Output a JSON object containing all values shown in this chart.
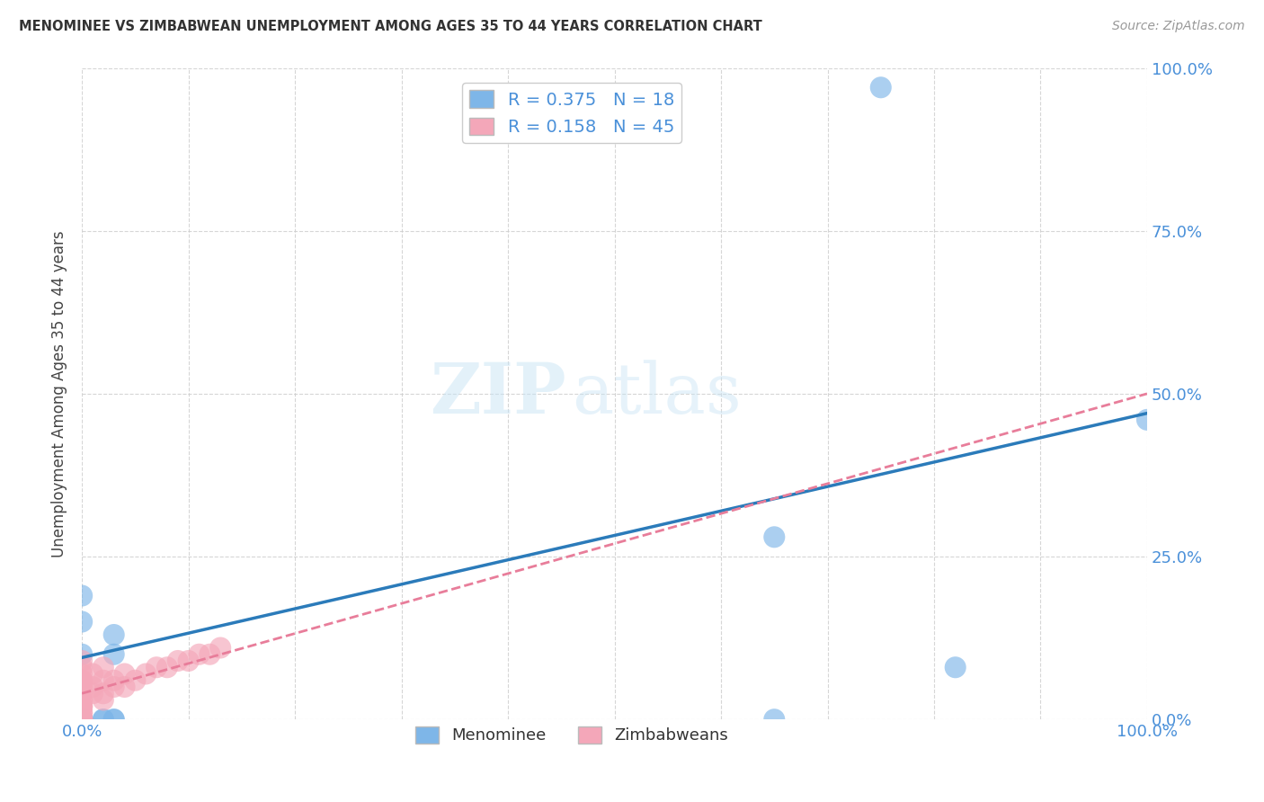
{
  "title": "MENOMINEE VS ZIMBABWEAN UNEMPLOYMENT AMONG AGES 35 TO 44 YEARS CORRELATION CHART",
  "source": "Source: ZipAtlas.com",
  "ylabel": "Unemployment Among Ages 35 to 44 years",
  "xlim": [
    0,
    1.0
  ],
  "ylim": [
    0,
    1.0
  ],
  "xticks": [
    0.0,
    0.1,
    0.2,
    0.3,
    0.4,
    0.5,
    0.6,
    0.7,
    0.8,
    0.9,
    1.0
  ],
  "yticks": [
    0.0,
    0.25,
    0.5,
    0.75,
    1.0
  ],
  "xticklabels_show": [
    "0.0%",
    "",
    "",
    "",
    "",
    "",
    "",
    "",
    "",
    "",
    "100.0%"
  ],
  "right_yticklabels": [
    "0.0%",
    "25.0%",
    "50.0%",
    "75.0%",
    "100.0%"
  ],
  "menominee_color": "#7EB6E8",
  "zimbabwean_color": "#F4A7B9",
  "menominee_R": 0.375,
  "menominee_N": 18,
  "zimbabwean_R": 0.158,
  "zimbabwean_N": 45,
  "menominee_points": [
    [
      0.0,
      0.0
    ],
    [
      0.0,
      0.0
    ],
    [
      0.0,
      0.0
    ],
    [
      0.0,
      0.0
    ],
    [
      0.02,
      0.0
    ],
    [
      0.02,
      0.0
    ],
    [
      0.03,
      0.13
    ],
    [
      0.03,
      0.1
    ],
    [
      0.03,
      0.0
    ],
    [
      0.03,
      0.0
    ],
    [
      0.0,
      0.19
    ],
    [
      0.0,
      0.15
    ],
    [
      0.0,
      0.1
    ],
    [
      0.65,
      0.28
    ],
    [
      0.82,
      0.08
    ],
    [
      0.65,
      0.0
    ],
    [
      0.75,
      0.97
    ],
    [
      1.0,
      0.46
    ]
  ],
  "zimbabwean_points": [
    [
      0.0,
      0.0
    ],
    [
      0.0,
      0.0
    ],
    [
      0.0,
      0.0
    ],
    [
      0.0,
      0.0
    ],
    [
      0.0,
      0.0
    ],
    [
      0.0,
      0.0
    ],
    [
      0.0,
      0.0
    ],
    [
      0.0,
      0.0
    ],
    [
      0.0,
      0.0
    ],
    [
      0.0,
      0.0
    ],
    [
      0.0,
      0.01
    ],
    [
      0.0,
      0.01
    ],
    [
      0.0,
      0.02
    ],
    [
      0.0,
      0.02
    ],
    [
      0.0,
      0.02
    ],
    [
      0.0,
      0.03
    ],
    [
      0.0,
      0.03
    ],
    [
      0.0,
      0.04
    ],
    [
      0.0,
      0.05
    ],
    [
      0.0,
      0.05
    ],
    [
      0.0,
      0.06
    ],
    [
      0.0,
      0.06
    ],
    [
      0.0,
      0.07
    ],
    [
      0.0,
      0.08
    ],
    [
      0.0,
      0.09
    ],
    [
      0.01,
      0.04
    ],
    [
      0.01,
      0.05
    ],
    [
      0.01,
      0.07
    ],
    [
      0.02,
      0.03
    ],
    [
      0.02,
      0.04
    ],
    [
      0.02,
      0.06
    ],
    [
      0.02,
      0.08
    ],
    [
      0.03,
      0.05
    ],
    [
      0.03,
      0.06
    ],
    [
      0.04,
      0.05
    ],
    [
      0.04,
      0.07
    ],
    [
      0.05,
      0.06
    ],
    [
      0.06,
      0.07
    ],
    [
      0.07,
      0.08
    ],
    [
      0.08,
      0.08
    ],
    [
      0.09,
      0.09
    ],
    [
      0.1,
      0.09
    ],
    [
      0.11,
      0.1
    ],
    [
      0.12,
      0.1
    ],
    [
      0.13,
      0.11
    ]
  ],
  "menominee_line_intercept": 0.095,
  "menominee_line_slope": 0.375,
  "zimbabwean_line_intercept": 0.04,
  "zimbabwean_line_slope": 0.46,
  "menominee_line_color": "#2B7BBA",
  "zimbabwean_line_color": "#E87D9A",
  "grid_color": "#CCCCCC",
  "watermark_zip": "ZIP",
  "watermark_atlas": "atlas",
  "legend_label_color": "#4A90D9",
  "tick_color": "#4A90D9",
  "background_color": "#FFFFFF"
}
